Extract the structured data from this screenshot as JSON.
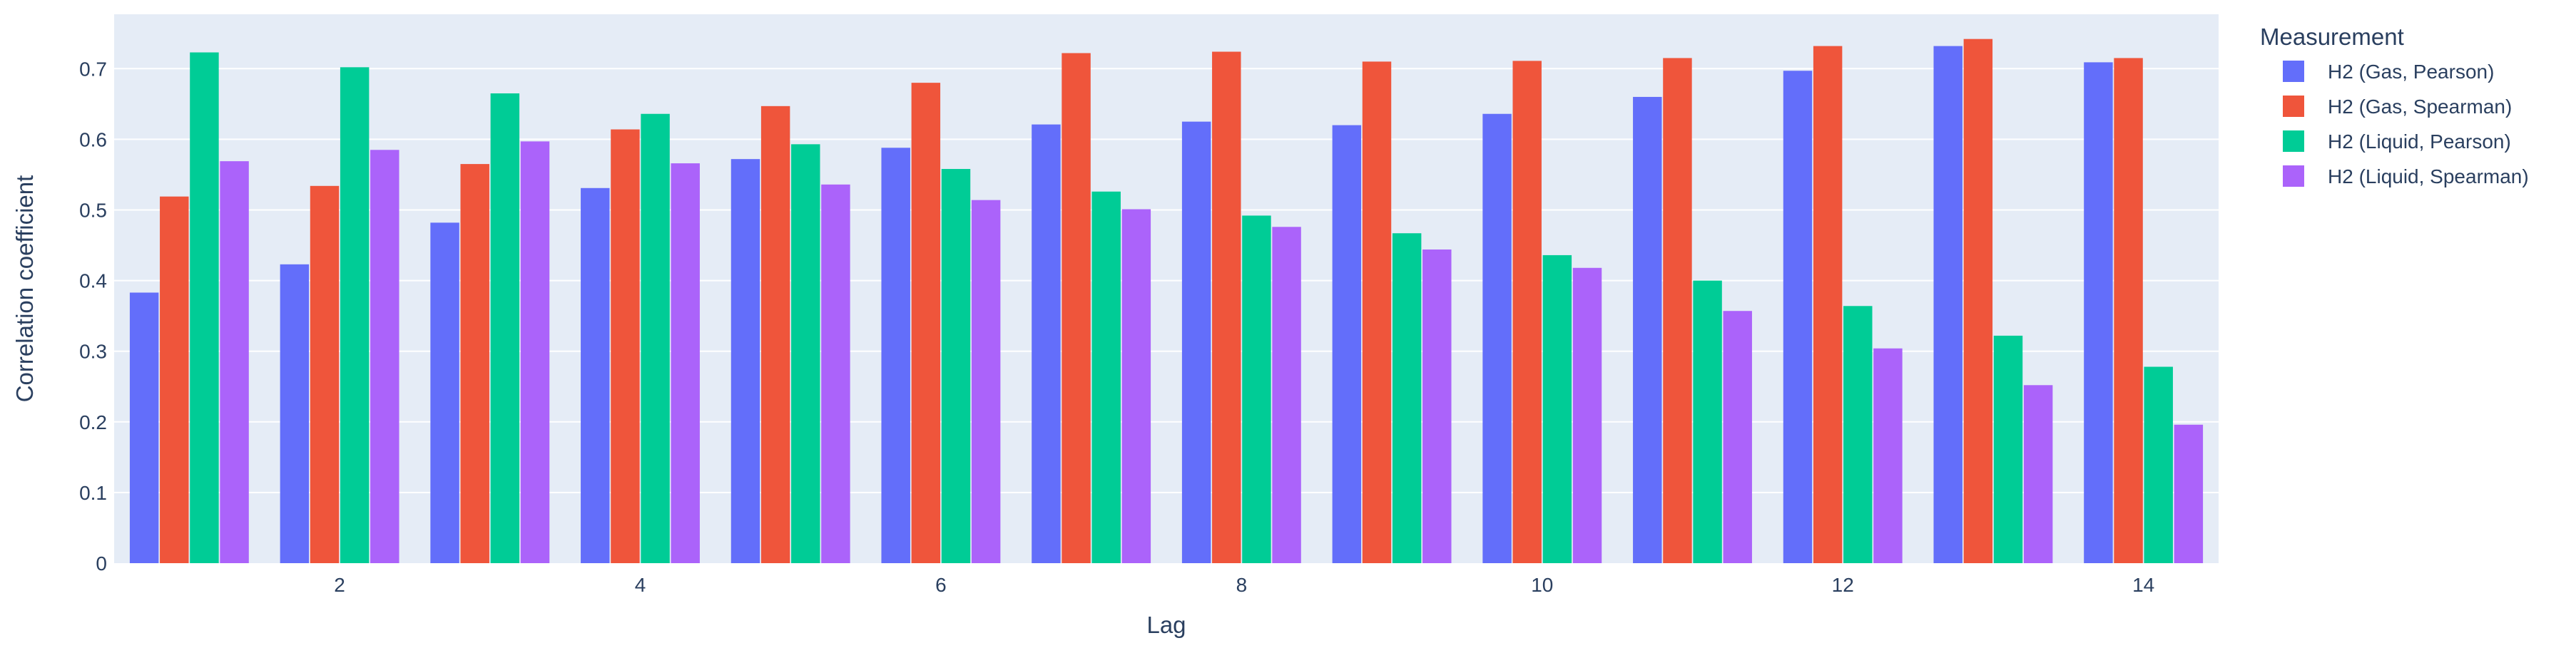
{
  "chart_data": {
    "type": "bar",
    "xlabel": "Lag",
    "ylabel": "Correlation coefficient",
    "x": [
      1,
      2,
      3,
      4,
      5,
      6,
      7,
      8,
      9,
      10,
      11,
      12,
      13,
      14
    ],
    "xticks": [
      2,
      4,
      6,
      8,
      10,
      12,
      14
    ],
    "yticks": [
      0,
      0.1,
      0.2,
      0.3,
      0.4,
      0.5,
      0.6,
      0.7
    ],
    "ylim": [
      0,
      0.777
    ],
    "xlim": [
      0.5,
      14.5
    ],
    "grid": true,
    "legend_position": "right",
    "legend_title": "Measurement",
    "series": [
      {
        "name": "H2 (Gas, Pearson)",
        "color": "#636efa",
        "values": [
          0.383,
          0.423,
          0.482,
          0.531,
          0.572,
          0.588,
          0.621,
          0.625,
          0.62,
          0.636,
          0.66,
          0.697,
          0.732,
          0.709
        ]
      },
      {
        "name": "H2 (Gas, Spearman)",
        "color": "#ef553b",
        "values": [
          0.519,
          0.534,
          0.565,
          0.614,
          0.647,
          0.68,
          0.722,
          0.724,
          0.71,
          0.711,
          0.715,
          0.732,
          0.742,
          0.715
        ]
      },
      {
        "name": "H2 (Liquid, Pearson)",
        "color": "#00cc96",
        "values": [
          0.723,
          0.702,
          0.665,
          0.636,
          0.593,
          0.558,
          0.526,
          0.492,
          0.467,
          0.436,
          0.4,
          0.364,
          0.322,
          0.278
        ]
      },
      {
        "name": "H2 (Liquid, Spearman)",
        "color": "#ab63fa",
        "values": [
          0.569,
          0.585,
          0.597,
          0.566,
          0.536,
          0.514,
          0.501,
          0.476,
          0.444,
          0.418,
          0.357,
          0.304,
          0.252,
          0.196
        ]
      }
    ]
  },
  "colors": {
    "plot_background": "#e5ecf6",
    "grid": "#ffffff",
    "text": "#2a3f5f"
  }
}
